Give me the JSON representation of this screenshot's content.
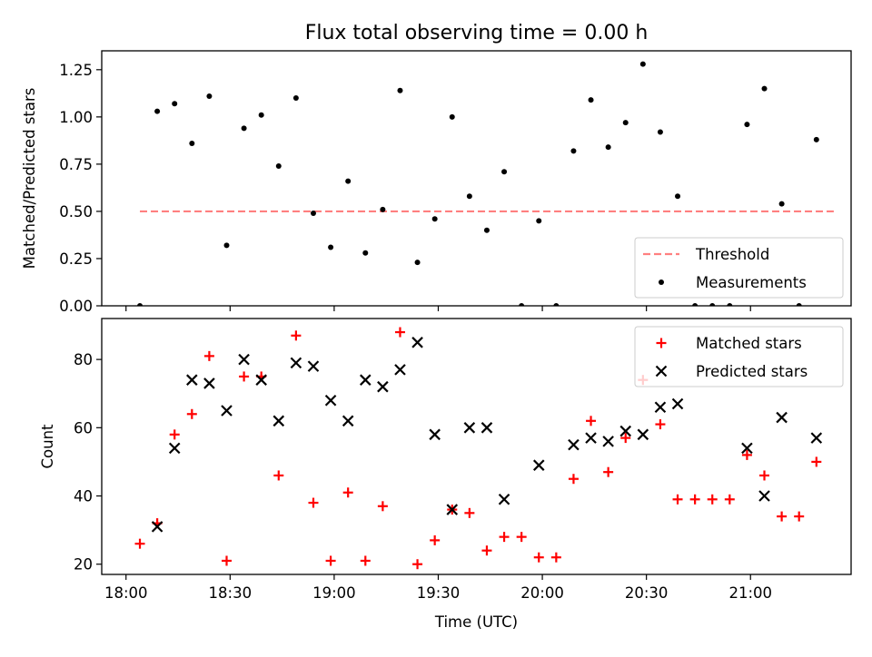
{
  "figure_title": "Flux total observing time = 0.00 h",
  "colors": {
    "threshold": "#ff8080",
    "matched": "#ff0000",
    "predicted": "#000000",
    "measurement": "#000000"
  },
  "chart_data": [
    {
      "type": "scatter",
      "title": "Flux total observing time = 0.00 h",
      "xlabel": "",
      "ylabel": "Matched/Predicted stars",
      "xlim": [
        "17:53",
        "21:29"
      ],
      "ylim": [
        0,
        1.35
      ],
      "x_ticks": [
        "18:00",
        "18:30",
        "19:00",
        "19:30",
        "20:00",
        "20:30",
        "21:00"
      ],
      "y_ticks": [
        "0.00",
        "0.25",
        "0.50",
        "0.75",
        "1.00",
        "1.25"
      ],
      "legend_position": "lower-right",
      "legend": [
        "Threshold",
        "Measurements"
      ],
      "series": [
        {
          "name": "Threshold",
          "style": "dashed-line",
          "x": [
            "18:04",
            "21:24"
          ],
          "y": [
            0.5,
            0.5
          ]
        },
        {
          "name": "Measurements",
          "style": "dots",
          "x": [
            "18:04",
            "18:09",
            "18:14",
            "18:19",
            "18:24",
            "18:29",
            "18:34",
            "18:39",
            "18:44",
            "18:49",
            "18:54",
            "18:59",
            "19:04",
            "19:09",
            "19:14",
            "19:19",
            "19:24",
            "19:29",
            "19:34",
            "19:39",
            "19:44",
            "19:49",
            "19:54",
            "19:59",
            "20:04",
            "20:09",
            "20:14",
            "20:19",
            "20:24",
            "20:29",
            "20:34",
            "20:39",
            "20:44",
            "20:49",
            "20:54",
            "20:59",
            "21:04",
            "21:09",
            "21:14",
            "21:19"
          ],
          "y": [
            0.0,
            1.03,
            1.07,
            0.86,
            1.11,
            0.32,
            0.94,
            1.01,
            0.74,
            1.1,
            0.49,
            0.31,
            0.66,
            0.28,
            0.51,
            1.14,
            0.23,
            0.46,
            1.0,
            0.58,
            0.4,
            0.71,
            0.0,
            0.45,
            0.0,
            0.82,
            1.09,
            0.84,
            0.97,
            1.28,
            0.92,
            0.58,
            0.0,
            0.0,
            0.0,
            0.96,
            1.15,
            0.54,
            0.0,
            0.88
          ]
        }
      ]
    },
    {
      "type": "scatter",
      "title": "",
      "xlabel": "Time (UTC)",
      "ylabel": "Count",
      "xlim": [
        "17:53",
        "21:29"
      ],
      "ylim": [
        17,
        92
      ],
      "x_ticks": [
        "18:00",
        "18:30",
        "19:00",
        "19:30",
        "20:00",
        "20:30",
        "21:00"
      ],
      "y_ticks": [
        "20",
        "40",
        "60",
        "80"
      ],
      "legend_position": "upper-right",
      "legend": [
        "Matched stars",
        "Predicted stars"
      ],
      "series": [
        {
          "name": "Matched stars",
          "marker": "+",
          "x": [
            "18:04",
            "18:09",
            "18:14",
            "18:19",
            "18:24",
            "18:29",
            "18:34",
            "18:39",
            "18:44",
            "18:49",
            "18:54",
            "18:59",
            "19:04",
            "19:09",
            "19:14",
            "19:19",
            "19:24",
            "19:29",
            "19:34",
            "19:39",
            "19:44",
            "19:49",
            "19:54",
            "19:59",
            "20:04",
            "20:09",
            "20:14",
            "20:19",
            "20:24",
            "20:29",
            "20:34",
            "20:39",
            "20:44",
            "20:49",
            "20:54",
            "20:59",
            "21:04",
            "21:09",
            "21:14",
            "21:19"
          ],
          "y": [
            26,
            32,
            58,
            64,
            81,
            21,
            75,
            75,
            46,
            87,
            38,
            21,
            41,
            21,
            37,
            88,
            20,
            27,
            36,
            35,
            24,
            28,
            28,
            22,
            22,
            45,
            62,
            47,
            57,
            74,
            61,
            39,
            39,
            39,
            39,
            52,
            46,
            34,
            34,
            50
          ]
        },
        {
          "name": "Predicted stars",
          "marker": "x",
          "x": [
            "18:09",
            "18:14",
            "18:19",
            "18:24",
            "18:29",
            "18:34",
            "18:39",
            "18:44",
            "18:49",
            "18:54",
            "18:59",
            "19:04",
            "19:09",
            "19:14",
            "19:19",
            "19:24",
            "19:29",
            "19:34",
            "19:39",
            "19:44",
            "19:49",
            "19:59",
            "20:09",
            "20:14",
            "20:19",
            "20:24",
            "20:29",
            "20:34",
            "20:39",
            "20:59",
            "21:04",
            "21:09",
            "21:19"
          ],
          "y": [
            31,
            54,
            74,
            73,
            65,
            80,
            74,
            62,
            79,
            78,
            68,
            62,
            74,
            72,
            77,
            85,
            58,
            36,
            60,
            60,
            39,
            49,
            55,
            57,
            56,
            59,
            58,
            66,
            67,
            54,
            40,
            63,
            57
          ]
        }
      ]
    }
  ],
  "shared_x_label": "Time (UTC)"
}
